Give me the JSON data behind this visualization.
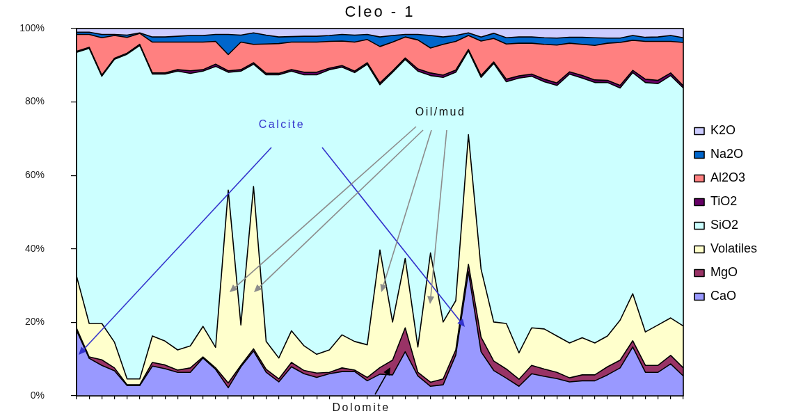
{
  "chart_data": {
    "type": "area",
    "title": "Cleo - 1",
    "stacked": true,
    "legend": "right",
    "tick_labels": "y",
    "categories": [
      null,
      null,
      null,
      null,
      null,
      null,
      null,
      null,
      null,
      null,
      null,
      null,
      null,
      null,
      null,
      null,
      null,
      null,
      null,
      null,
      null,
      null,
      null,
      null,
      null,
      null,
      null,
      null,
      null,
      null,
      null,
      null,
      null,
      null,
      null,
      null,
      null,
      null,
      null,
      null,
      null,
      null,
      null,
      null,
      null,
      null,
      null,
      null,
      null
    ],
    "ylim": [
      0,
      100
    ],
    "yticks": [
      {
        "value": 0,
        "label": "0%"
      },
      {
        "value": 20,
        "label": "20%"
      },
      {
        "value": 40,
        "label": "40%"
      },
      {
        "value": 60,
        "label": "60%"
      },
      {
        "value": 80,
        "label": "80%"
      },
      {
        "value": 100,
        "label": "100%"
      }
    ],
    "series": [
      {
        "name": "CaO",
        "color": "#9999ff",
        "values": [
          17.8,
          10.2,
          8.3,
          6.8,
          2.8,
          2.8,
          8.1,
          7.4,
          6.4,
          6.4,
          10.3,
          7.2,
          2.2,
          7.9,
          12.2,
          6.4,
          3.8,
          7.9,
          6.0,
          5.0,
          6.0,
          6.6,
          6.6,
          4.1,
          5.9,
          5.7,
          12.0,
          5.4,
          2.6,
          3.0,
          11.1,
          33.8,
          12.0,
          6.9,
          4.8,
          2.6,
          6.0,
          5.3,
          4.7,
          3.8,
          4.1,
          4.1,
          5.7,
          7.6,
          13.3,
          6.4,
          6.4,
          8.7,
          5.4
        ]
      },
      {
        "name": "MgO",
        "color": "#993366",
        "values": [
          0.6,
          0.4,
          1.5,
          0.8,
          0.2,
          0.2,
          1.0,
          1.0,
          0.6,
          1.2,
          0.3,
          0.4,
          1.3,
          0.4,
          0.6,
          0.8,
          0.8,
          1.2,
          0.9,
          1.2,
          0.4,
          1.0,
          0.4,
          0.9,
          1.8,
          4.0,
          6.5,
          1.0,
          1.1,
          1.6,
          1.4,
          2.0,
          4.0,
          2.6,
          2.5,
          1.9,
          2.3,
          2.0,
          1.7,
          1.1,
          1.6,
          1.6,
          2.2,
          2.1,
          1.7,
          1.9,
          1.9,
          2.3,
          2.2
        ]
      },
      {
        "name": "Volatiles",
        "color": "#ffffcc",
        "values": [
          14.2,
          9.1,
          9.9,
          7.0,
          1.6,
          1.6,
          7.2,
          6.5,
          5.5,
          6.0,
          8.3,
          5.6,
          52.5,
          11.0,
          44.2,
          7.6,
          5.7,
          8.6,
          6.7,
          5.1,
          6.1,
          9.0,
          7.8,
          8.9,
          32.0,
          10.4,
          18.9,
          6.9,
          35.2,
          15.5,
          13.4,
          35.3,
          18.5,
          10.6,
          12.4,
          7.2,
          10.2,
          10.9,
          9.9,
          9.5,
          10.1,
          8.7,
          8.4,
          10.9,
          12.8,
          9.1,
          11.0,
          10.2,
          11.4
        ]
      },
      {
        "name": "SiO2",
        "color": "#ccffff",
        "values": [
          60.9,
          74.9,
          67.3,
          77.0,
          88.4,
          90.8,
          71.3,
          72.7,
          75.9,
          74.2,
          69.5,
          76.5,
          32.1,
          69.1,
          33.3,
          72.6,
          77.1,
          70.7,
          73.8,
          76.1,
          76.3,
          72.9,
          73.2,
          76.4,
          45.0,
          68.0,
          54.2,
          75.1,
          48.3,
          66.6,
          62.2,
          22.8,
          52.2,
          70.4,
          65.8,
          74.8,
          68.5,
          67.3,
          68.2,
          73.2,
          70.7,
          70.9,
          69.0,
          63.2,
          60.2,
          67.9,
          65.7,
          66.0,
          64.8
        ]
      },
      {
        "name": "TiO2",
        "color": "#660066",
        "values": [
          0.3,
          0.3,
          0.3,
          0.3,
          0.3,
          0.3,
          0.3,
          0.3,
          0.4,
          0.7,
          0.4,
          0.6,
          0.4,
          0.4,
          0.4,
          0.4,
          0.4,
          0.4,
          0.7,
          0.7,
          0.4,
          0.4,
          0.4,
          0.4,
          0.5,
          0.4,
          0.4,
          0.6,
          0.7,
          0.6,
          0.6,
          0.4,
          0.5,
          0.4,
          0.7,
          0.6,
          0.6,
          0.7,
          0.7,
          0.6,
          0.7,
          0.7,
          0.6,
          0.7,
          0.6,
          0.9,
          0.9,
          0.7,
          0.6
        ]
      },
      {
        "name": "Al2O3",
        "color": "#ff8080",
        "values": [
          4.6,
          3.5,
          10.2,
          6.2,
          4.3,
          3.0,
          8.4,
          8.4,
          7.5,
          7.8,
          7.5,
          6.2,
          4.4,
          7.5,
          5.0,
          8.0,
          8.1,
          7.5,
          8.2,
          8.2,
          7.3,
          6.7,
          7.9,
          6.3,
          9.9,
          7.8,
          5.7,
          7.9,
          6.8,
          8.4,
          7.8,
          3.8,
          9.4,
          6.4,
          9.6,
          8.9,
          8.4,
          9.5,
          10.3,
          7.8,
          8.5,
          9.4,
          10.1,
          11.7,
          8.2,
          10.3,
          10.6,
          8.6,
          11.8
        ]
      },
      {
        "name": "Na2O",
        "color": "#0066cc",
        "values": [
          0.6,
          0.6,
          0.9,
          0.3,
          0.6,
          0.1,
          1.4,
          1.4,
          1.6,
          1.8,
          1.8,
          1.9,
          5.5,
          1.9,
          3.1,
          2.4,
          1.8,
          1.5,
          1.6,
          1.6,
          1.6,
          1.8,
          1.9,
          1.4,
          2.6,
          1.8,
          0.7,
          1.5,
          3.4,
          2.0,
          1.6,
          0.7,
          1.1,
          1.4,
          1.7,
          1.7,
          1.7,
          1.8,
          1.9,
          1.6,
          1.9,
          2.1,
          1.4,
          1.2,
          1.3,
          1.1,
          1.2,
          1.6,
          1.3
        ]
      },
      {
        "name": "K2O",
        "color": "#ccccff",
        "values": [
          1.0,
          1.0,
          1.6,
          1.6,
          1.8,
          1.2,
          2.3,
          2.3,
          2.1,
          1.9,
          1.9,
          1.6,
          1.6,
          1.8,
          1.2,
          1.8,
          2.3,
          2.2,
          2.1,
          2.1,
          1.9,
          1.6,
          1.8,
          1.6,
          2.3,
          1.9,
          1.6,
          1.6,
          1.9,
          2.3,
          1.9,
          1.2,
          2.3,
          1.3,
          2.5,
          2.3,
          2.3,
          2.5,
          2.6,
          2.4,
          2.4,
          2.5,
          2.6,
          2.6,
          1.9,
          2.4,
          2.3,
          1.9,
          2.5
        ]
      }
    ],
    "annotations": [
      "Calcite",
      "Oil/mud",
      "Dolomite"
    ]
  }
}
